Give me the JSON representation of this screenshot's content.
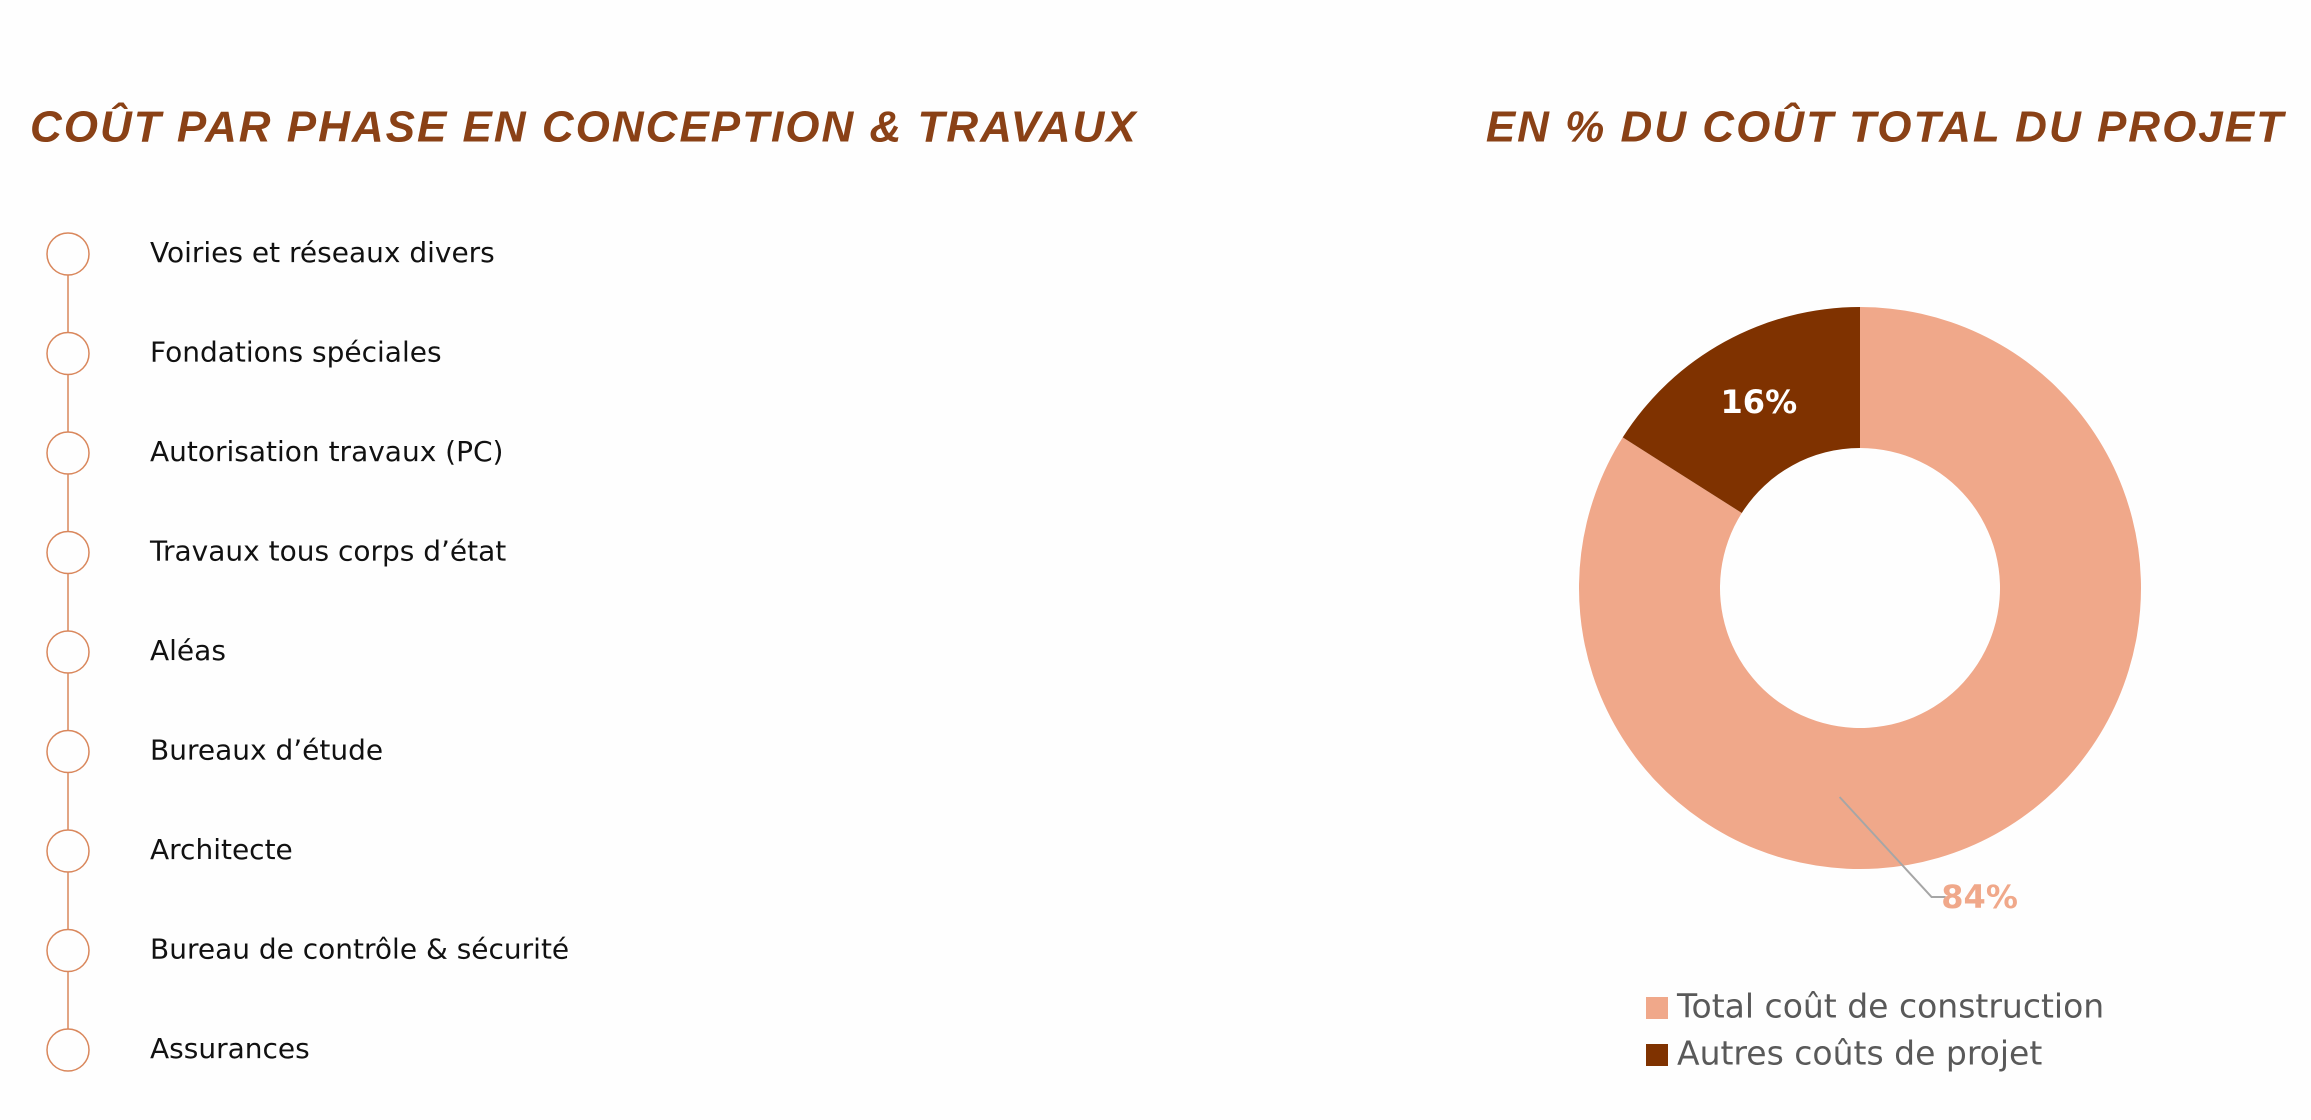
{
  "left": {
    "title": "COÛT PAR PHASE EN CONCEPTION & TRAVAUX",
    "items": [
      "Voiries et réseaux divers",
      "Fondations spéciales",
      "Autorisation travaux (PC)",
      "Travaux tous corps d’état",
      "Aléas",
      "Bureaux d’étude",
      "Architecte",
      "Bureau de contrôle & sécurité",
      "Assurances"
    ]
  },
  "chart_data": {
    "type": "donut",
    "title": "EN % DU COÛT TOTAL DU PROJET",
    "categories": [
      "Total coût de construction",
      "Autres coûts de projet"
    ],
    "values": [
      84,
      16
    ],
    "value_labels": [
      "84%",
      "16%"
    ],
    "colors": [
      "#f0a88a",
      "#7f3200"
    ]
  }
}
